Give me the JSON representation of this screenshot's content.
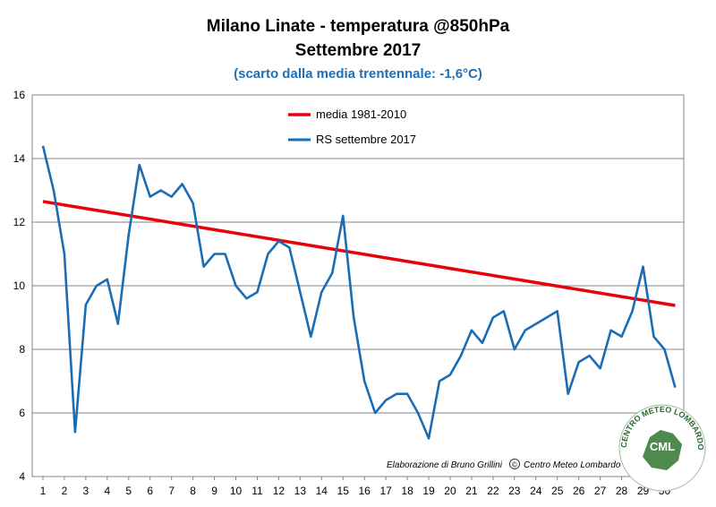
{
  "chart_data": {
    "type": "line",
    "title": "Milano Linate - temperatura @850hPa",
    "subtitle_line2": "Settembre 2017",
    "subtitle": "(scarto dalla media trentennale: -1,6°C)",
    "xlabel": "",
    "ylabel": "",
    "ylim": [
      4,
      16
    ],
    "yticks": [
      "4",
      "6",
      "8",
      "10",
      "12",
      "14",
      "16"
    ],
    "xticks": [
      "1",
      "2",
      "3",
      "4",
      "5",
      "6",
      "7",
      "8",
      "9",
      "10",
      "11",
      "12",
      "13",
      "14",
      "15",
      "16",
      "17",
      "18",
      "19",
      "20",
      "21",
      "22",
      "23",
      "24",
      "25",
      "26",
      "27",
      "28",
      "29",
      "30"
    ],
    "grid": "horizontal",
    "legend_position": "top-center",
    "series": [
      {
        "name": "media 1981-2010",
        "color": "#e8000b",
        "x": [
          1,
          30.5
        ],
        "values": [
          12.65,
          9.38
        ]
      },
      {
        "name": "RS settembre 2017",
        "color": "#1a6db5",
        "x": [
          1,
          1.5,
          2,
          2.5,
          3,
          3.5,
          4,
          4.5,
          5,
          5.5,
          6,
          6.5,
          7,
          7.5,
          8,
          8.5,
          9,
          9.5,
          10,
          10.5,
          11,
          11.5,
          12,
          12.5,
          13,
          13.5,
          14,
          14.5,
          15,
          15.5,
          16,
          16.5,
          17,
          17.5,
          18,
          18.5,
          19,
          19.5,
          20,
          20.5,
          21,
          21.5,
          22,
          22.5,
          23,
          23.5,
          24,
          25,
          25.5,
          26,
          26.5,
          27,
          27.5,
          28,
          28.5,
          29,
          29.5,
          30,
          30.5
        ],
        "values": [
          14.4,
          13.0,
          11.0,
          5.4,
          9.4,
          10.0,
          10.2,
          8.8,
          11.6,
          13.8,
          12.8,
          13.0,
          12.8,
          13.2,
          12.6,
          10.6,
          11.0,
          11.0,
          10.0,
          9.6,
          9.8,
          11.0,
          11.4,
          11.2,
          9.8,
          8.4,
          9.8,
          10.4,
          12.2,
          9.0,
          7.0,
          6.0,
          6.4,
          6.6,
          6.6,
          6.0,
          5.2,
          7.0,
          7.2,
          7.8,
          8.6,
          8.2,
          9.0,
          9.2,
          8.0,
          8.6,
          8.8,
          9.2,
          6.6,
          7.6,
          7.8,
          7.4,
          8.6,
          8.4,
          9.2,
          10.6,
          8.4,
          8.0,
          6.8
        ]
      }
    ]
  },
  "credit": {
    "text_before": "Elaborazione di Bruno Grillini",
    "copyright_symbol": "©",
    "text_after": "Centro Meteo Lombardo"
  },
  "logo": {
    "ring_text": "CENTRO METEO LOMBARDO",
    "center_text": "CML"
  }
}
